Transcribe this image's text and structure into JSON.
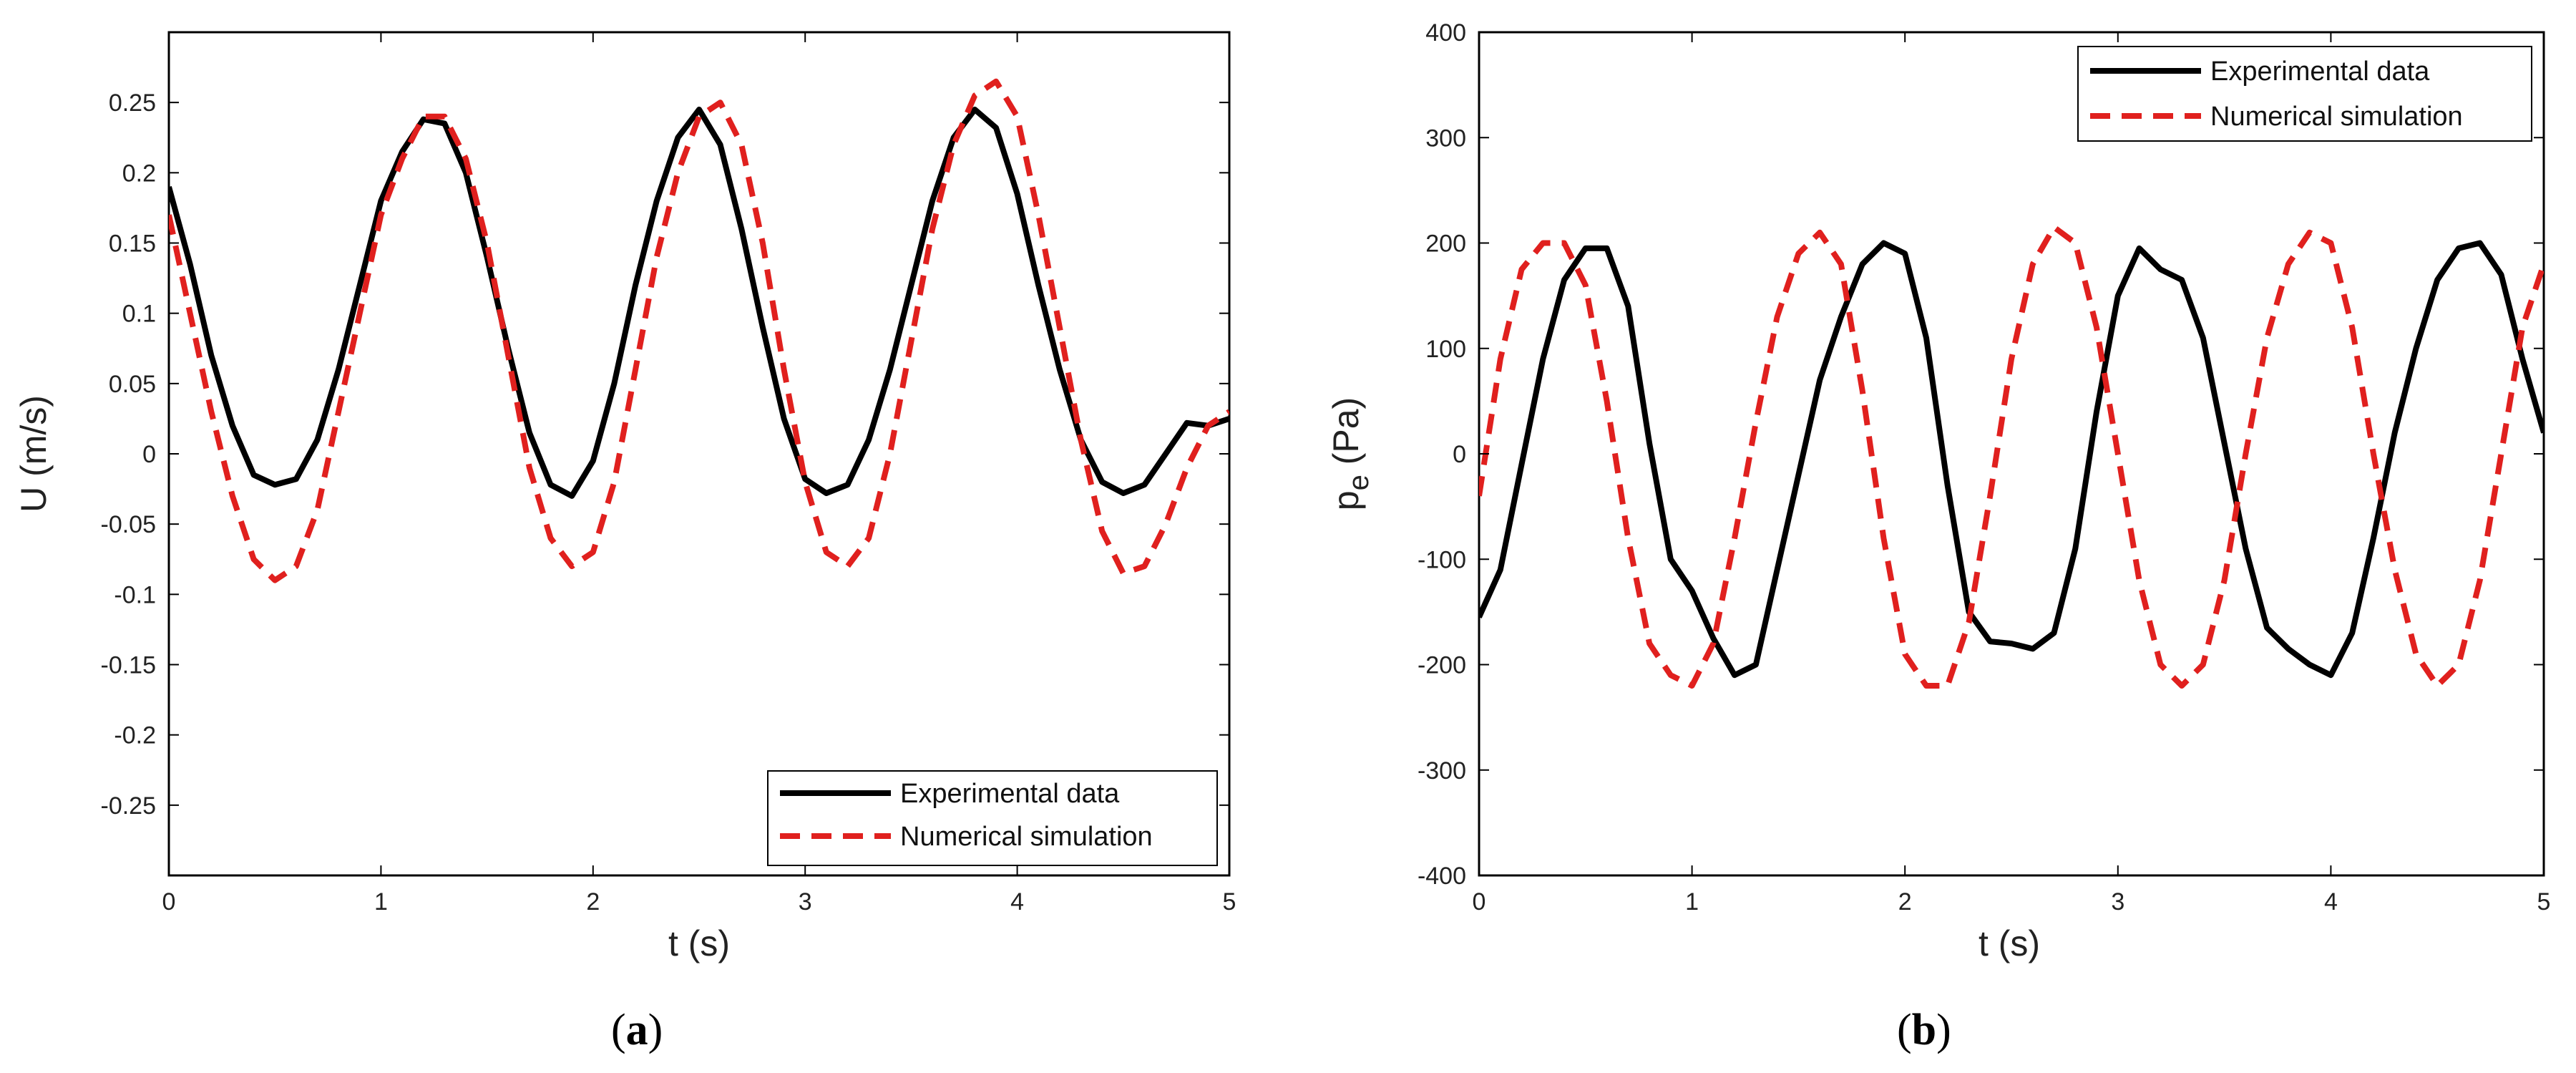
{
  "chart_data": [
    {
      "type": "line",
      "panel_label": {
        "open": "(",
        "letter": "a",
        "close": ")"
      },
      "xlabel": "t (s)",
      "ylabel": "U (m/s)",
      "ylabel_sub": "",
      "xlim": [
        0,
        5
      ],
      "ylim": [
        -0.3,
        0.3
      ],
      "xticks": [
        0,
        1,
        2,
        3,
        4,
        5
      ],
      "xtick_labels": [
        "0",
        "1",
        "2",
        "3",
        "4",
        "5"
      ],
      "yticks": [
        -0.25,
        -0.2,
        -0.15,
        -0.1,
        -0.05,
        0,
        0.05,
        0.1,
        0.15,
        0.2,
        0.25
      ],
      "ytick_labels": [
        "-0.25",
        "-0.2",
        "-0.15",
        "-0.1",
        "-0.05",
        "0",
        "0.05",
        "0.1",
        "0.15",
        "0.2",
        "0.25"
      ],
      "legend_position": "bottom-right",
      "series": [
        {
          "name": "Experimental data",
          "color": "#000000",
          "style": "solid",
          "x": [
            0,
            0.1,
            0.2,
            0.3,
            0.4,
            0.5,
            0.6,
            0.7,
            0.8,
            0.9,
            1.0,
            1.1,
            1.2,
            1.3,
            1.4,
            1.5,
            1.6,
            1.7,
            1.8,
            1.9,
            2.0,
            2.1,
            2.2,
            2.3,
            2.4,
            2.5,
            2.6,
            2.7,
            2.8,
            2.9,
            3.0,
            3.1,
            3.2,
            3.3,
            3.4,
            3.5,
            3.6,
            3.7,
            3.8,
            3.9,
            4.0,
            4.1,
            4.2,
            4.3,
            4.4,
            4.5,
            4.6,
            4.7,
            4.8,
            4.9,
            5.0
          ],
          "y": [
            0.19,
            0.135,
            0.07,
            0.02,
            -0.015,
            -0.022,
            -0.018,
            0.01,
            0.06,
            0.12,
            0.18,
            0.215,
            0.238,
            0.235,
            0.2,
            0.14,
            0.075,
            0.015,
            -0.022,
            -0.03,
            -0.005,
            0.05,
            0.12,
            0.18,
            0.225,
            0.245,
            0.22,
            0.16,
            0.09,
            0.025,
            -0.018,
            -0.028,
            -0.022,
            0.01,
            0.06,
            0.12,
            0.18,
            0.225,
            0.245,
            0.232,
            0.185,
            0.12,
            0.06,
            0.01,
            -0.02,
            -0.028,
            -0.022,
            0.0,
            0.022,
            0.02,
            0.025
          ]
        },
        {
          "name": "Numerical simulation",
          "color": "#e0201e",
          "style": "dashed",
          "x": [
            0,
            0.1,
            0.2,
            0.3,
            0.4,
            0.5,
            0.6,
            0.7,
            0.8,
            0.9,
            1.0,
            1.1,
            1.2,
            1.3,
            1.4,
            1.5,
            1.6,
            1.7,
            1.8,
            1.9,
            2.0,
            2.1,
            2.2,
            2.3,
            2.4,
            2.5,
            2.6,
            2.7,
            2.8,
            2.9,
            3.0,
            3.1,
            3.2,
            3.3,
            3.4,
            3.5,
            3.6,
            3.7,
            3.8,
            3.9,
            4.0,
            4.1,
            4.2,
            4.3,
            4.4,
            4.5,
            4.6,
            4.7,
            4.8,
            4.9,
            5.0
          ],
          "y": [
            0.17,
            0.1,
            0.03,
            -0.03,
            -0.075,
            -0.09,
            -0.08,
            -0.04,
            0.03,
            0.1,
            0.17,
            0.21,
            0.24,
            0.24,
            0.21,
            0.15,
            0.07,
            -0.01,
            -0.06,
            -0.08,
            -0.07,
            -0.02,
            0.06,
            0.14,
            0.2,
            0.24,
            0.25,
            0.22,
            0.15,
            0.06,
            -0.02,
            -0.07,
            -0.08,
            -0.06,
            0.0,
            0.08,
            0.16,
            0.22,
            0.255,
            0.265,
            0.24,
            0.17,
            0.09,
            0.01,
            -0.055,
            -0.085,
            -0.08,
            -0.05,
            -0.01,
            0.02,
            0.03
          ]
        }
      ]
    },
    {
      "type": "line",
      "panel_label": {
        "open": "(",
        "letter": "b",
        "close": ")"
      },
      "xlabel": "t (s)",
      "ylabel": "p",
      "ylabel_sub": "e",
      "ylabel_suffix": " (Pa)",
      "xlim": [
        0,
        5
      ],
      "ylim": [
        -400,
        400
      ],
      "xticks": [
        0,
        1,
        2,
        3,
        4,
        5
      ],
      "xtick_labels": [
        "0",
        "1",
        "2",
        "3",
        "4",
        "5"
      ],
      "yticks": [
        -400,
        -300,
        -200,
        -100,
        0,
        100,
        200,
        300,
        400
      ],
      "ytick_labels": [
        "-400",
        "-300",
        "-200",
        "-100",
        "0",
        "100",
        "200",
        "300",
        "400"
      ],
      "legend_position": "top-right",
      "series": [
        {
          "name": "Experimental data",
          "color": "#000000",
          "style": "solid",
          "x": [
            0,
            0.1,
            0.2,
            0.3,
            0.4,
            0.5,
            0.6,
            0.7,
            0.8,
            0.9,
            1.0,
            1.1,
            1.2,
            1.3,
            1.4,
            1.5,
            1.6,
            1.7,
            1.8,
            1.9,
            2.0,
            2.1,
            2.2,
            2.3,
            2.4,
            2.5,
            2.6,
            2.7,
            2.8,
            2.9,
            3.0,
            3.1,
            3.2,
            3.3,
            3.4,
            3.5,
            3.6,
            3.7,
            3.8,
            3.9,
            4.0,
            4.1,
            4.2,
            4.3,
            4.4,
            4.5,
            4.6,
            4.7,
            4.8,
            4.9,
            5.0
          ],
          "y": [
            -155,
            -110,
            -10,
            90,
            165,
            195,
            195,
            140,
            10,
            -100,
            -130,
            -175,
            -210,
            -200,
            -110,
            -20,
            70,
            130,
            180,
            200,
            190,
            110,
            -30,
            -150,
            -178,
            -180,
            -185,
            -170,
            -90,
            40,
            150,
            195,
            175,
            165,
            110,
            10,
            -90,
            -165,
            -185,
            -200,
            -210,
            -170,
            -80,
            20,
            100,
            165,
            195,
            200,
            170,
            90,
            20
          ]
        },
        {
          "name": "Numerical simulation",
          "color": "#e0201e",
          "style": "dashed",
          "x": [
            0,
            0.1,
            0.2,
            0.3,
            0.4,
            0.5,
            0.6,
            0.7,
            0.8,
            0.9,
            1.0,
            1.1,
            1.2,
            1.3,
            1.4,
            1.5,
            1.6,
            1.7,
            1.8,
            1.9,
            2.0,
            2.1,
            2.2,
            2.3,
            2.4,
            2.5,
            2.6,
            2.7,
            2.8,
            2.9,
            3.0,
            3.1,
            3.2,
            3.3,
            3.4,
            3.5,
            3.6,
            3.7,
            3.8,
            3.9,
            4.0,
            4.1,
            4.2,
            4.3,
            4.4,
            4.5,
            4.6,
            4.7,
            4.8,
            4.9,
            5.0
          ],
          "y": [
            -40,
            90,
            175,
            200,
            200,
            160,
            50,
            -80,
            -180,
            -210,
            -220,
            -180,
            -80,
            30,
            130,
            190,
            210,
            180,
            60,
            -80,
            -190,
            -220,
            -220,
            -160,
            -40,
            90,
            180,
            215,
            200,
            120,
            0,
            -120,
            -200,
            -220,
            -200,
            -120,
            0,
            110,
            180,
            210,
            200,
            120,
            0,
            -110,
            -190,
            -220,
            -200,
            -120,
            0,
            120,
            180
          ]
        }
      ]
    }
  ]
}
